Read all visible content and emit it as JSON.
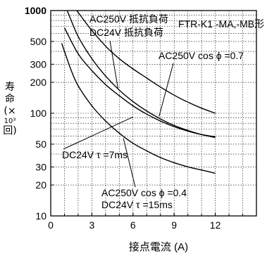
{
  "chart_data": {
    "type": "line",
    "title": "",
    "xlabel": "接点電流 (A)",
    "ylabel": {
      "top": "寿命",
      "unit_open": "(×",
      "power": "10³",
      "unit_close": "回)"
    },
    "x_scale": "linear",
    "y_scale": "log",
    "xlim": [
      0,
      15
    ],
    "ylim": [
      10,
      1000
    ],
    "x_ticks": [
      "0",
      "3",
      "6",
      "9",
      "12"
    ],
    "y_ticks": [
      "10",
      "20",
      "30",
      "50",
      "100",
      "200",
      "300",
      "500",
      "1000"
    ],
    "grid": true,
    "series": [
      {
        "x": [
          1.9,
          2.5,
          3.0,
          4.0,
          5.0,
          6.0,
          7.0,
          8.0,
          9.0,
          10.0,
          11.0,
          12.0
        ],
        "y": [
          1000,
          780,
          640,
          450,
          340,
          270,
          220,
          180,
          150,
          128,
          112,
          100
        ]
      },
      {
        "x": [
          1.2,
          2.0,
          3.0,
          4.0,
          5.0,
          6.0,
          7.0,
          8.0,
          9.0,
          10.0,
          11.0,
          12.0
        ],
        "y": [
          1000,
          560,
          340,
          230,
          168,
          130,
          105,
          88,
          76,
          68,
          62,
          58
        ]
      },
      {
        "x": [
          1.0,
          2.0,
          3.0,
          4.0,
          5.0,
          6.0,
          7.0,
          8.0,
          9.0,
          10.0,
          11.0,
          12.0
        ],
        "y": [
          680,
          380,
          260,
          190,
          148,
          118,
          98,
          84,
          74,
          67,
          62,
          59
        ]
      },
      {
        "x": [
          0.8,
          1.5,
          2.0,
          3.0,
          4.0,
          5.0,
          6.0,
          7.0,
          8.0,
          9.0,
          10.0,
          11.0,
          12.0
        ],
        "y": [
          480,
          260,
          185,
          118,
          84,
          64,
          51,
          43,
          37,
          33,
          30,
          28,
          26
        ]
      }
    ],
    "annotations": {
      "model": "FTR-K1 -MA,-MB形",
      "resistive_ac": "AC250V 抵抗負荷",
      "resistive_dc": "DC24V 抵抗負荷",
      "ac_cos07": "AC250V cos ϕ =0.7",
      "dc_7ms": "DC24V τ =7ms",
      "ac_cos04": "AC250V cos ϕ =0.4",
      "dc_15ms": "DC24V τ =15ms"
    }
  }
}
